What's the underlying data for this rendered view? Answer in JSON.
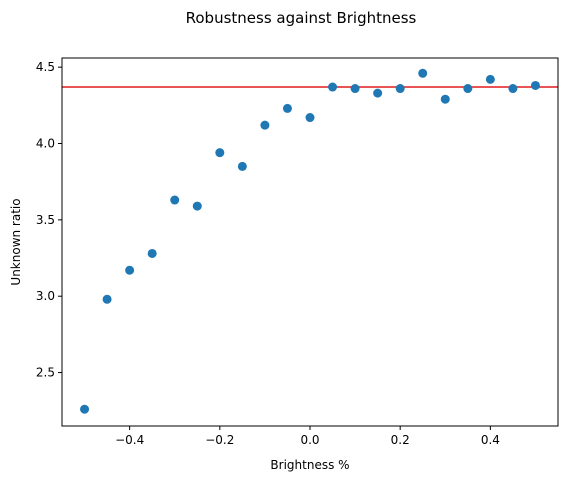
{
  "chart_data": {
    "type": "scatter",
    "title": "Robustness against Brightness",
    "xlabel": "Brightness %",
    "ylabel": "Unknown ratio",
    "xlim": [
      -0.55,
      0.55
    ],
    "ylim": [
      2.15,
      4.56
    ],
    "xticks": [
      -0.4,
      -0.2,
      0.0,
      0.2,
      0.4
    ],
    "xtick_labels": [
      "−0.4",
      "−0.2",
      "0.0",
      "0.2",
      "0.4"
    ],
    "yticks": [
      2.5,
      3.0,
      3.5,
      4.0,
      4.5
    ],
    "ytick_labels": [
      "2.5",
      "3.0",
      "3.5",
      "4.0",
      "4.5"
    ],
    "grid": false,
    "x": [
      -0.5,
      -0.45,
      -0.4,
      -0.35,
      -0.3,
      -0.25,
      -0.2,
      -0.15,
      -0.1,
      -0.05,
      0.0,
      0.05,
      0.1,
      0.15,
      0.2,
      0.25,
      0.3,
      0.35,
      0.4,
      0.45,
      0.5
    ],
    "y": [
      2.26,
      2.98,
      3.17,
      3.28,
      3.63,
      3.59,
      3.94,
      3.85,
      4.12,
      4.23,
      4.17,
      4.37,
      4.36,
      4.33,
      4.36,
      4.46,
      4.29,
      4.36,
      4.42,
      4.36,
      4.38
    ],
    "reference_line": {
      "y": 4.37,
      "color": "#e31a1c"
    },
    "marker_color": "#1f77b4"
  }
}
